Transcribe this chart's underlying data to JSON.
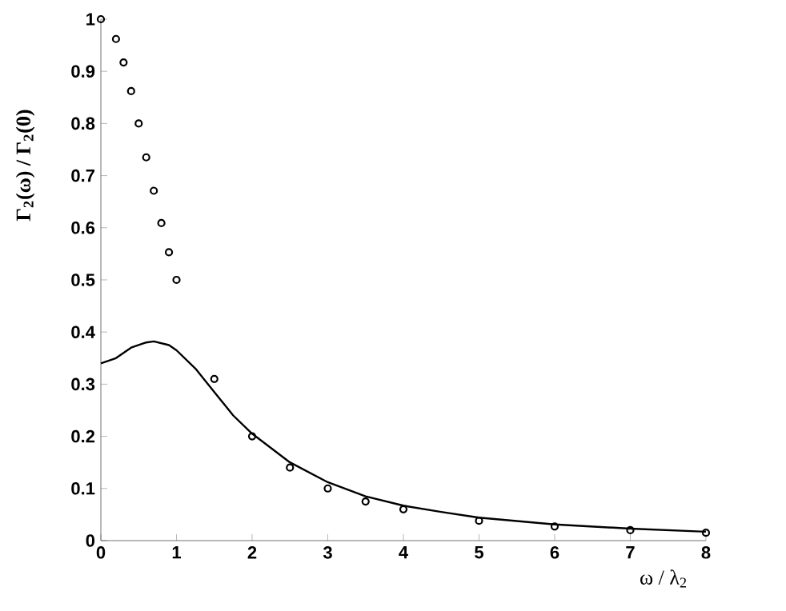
{
  "chart_data": {
    "type": "line",
    "xlabel": "ω / λ$_{2}$",
    "ylabel": "Γ$_{2}$(ω) / Γ$_{2}$(0)",
    "xlim": [
      0,
      8
    ],
    "ylim": [
      0,
      1
    ],
    "xticks": [
      0,
      1,
      2,
      3,
      4,
      5,
      6,
      7,
      8
    ],
    "yticks": [
      0,
      0.1,
      0.2,
      0.3,
      0.4,
      0.5,
      0.6,
      0.7,
      0.8,
      0.9,
      1
    ],
    "grid": false,
    "series": [
      {
        "type": "scatter",
        "marker": "circle",
        "color": "#000000",
        "x": [
          0,
          0.2,
          0.3,
          0.4,
          0.5,
          0.6,
          0.7,
          0.8,
          0.9,
          1.0,
          1.5,
          2,
          2.5,
          3,
          3.5,
          4,
          5,
          6,
          7,
          8
        ],
        "values": [
          1.0,
          0.962,
          0.917,
          0.862,
          0.8,
          0.735,
          0.671,
          0.609,
          0.553,
          0.5,
          0.31,
          0.2,
          0.14,
          0.1,
          0.075,
          0.06,
          0.038,
          0.027,
          0.02,
          0.015
        ]
      },
      {
        "marker": "none",
        "line_style": "solid",
        "color": "#000000",
        "x": [
          0,
          0.2,
          0.4,
          0.6,
          0.7,
          0.9,
          1,
          1.25,
          1.5,
          1.75,
          2,
          2.5,
          3,
          3.5,
          4,
          4.5,
          5,
          6,
          7,
          8
        ],
        "values": [
          0.34,
          0.35,
          0.37,
          0.38,
          0.382,
          0.375,
          0.365,
          0.33,
          0.285,
          0.24,
          0.205,
          0.15,
          0.112,
          0.085,
          0.067,
          0.055,
          0.044,
          0.031,
          0.023,
          0.017
        ]
      }
    ]
  }
}
